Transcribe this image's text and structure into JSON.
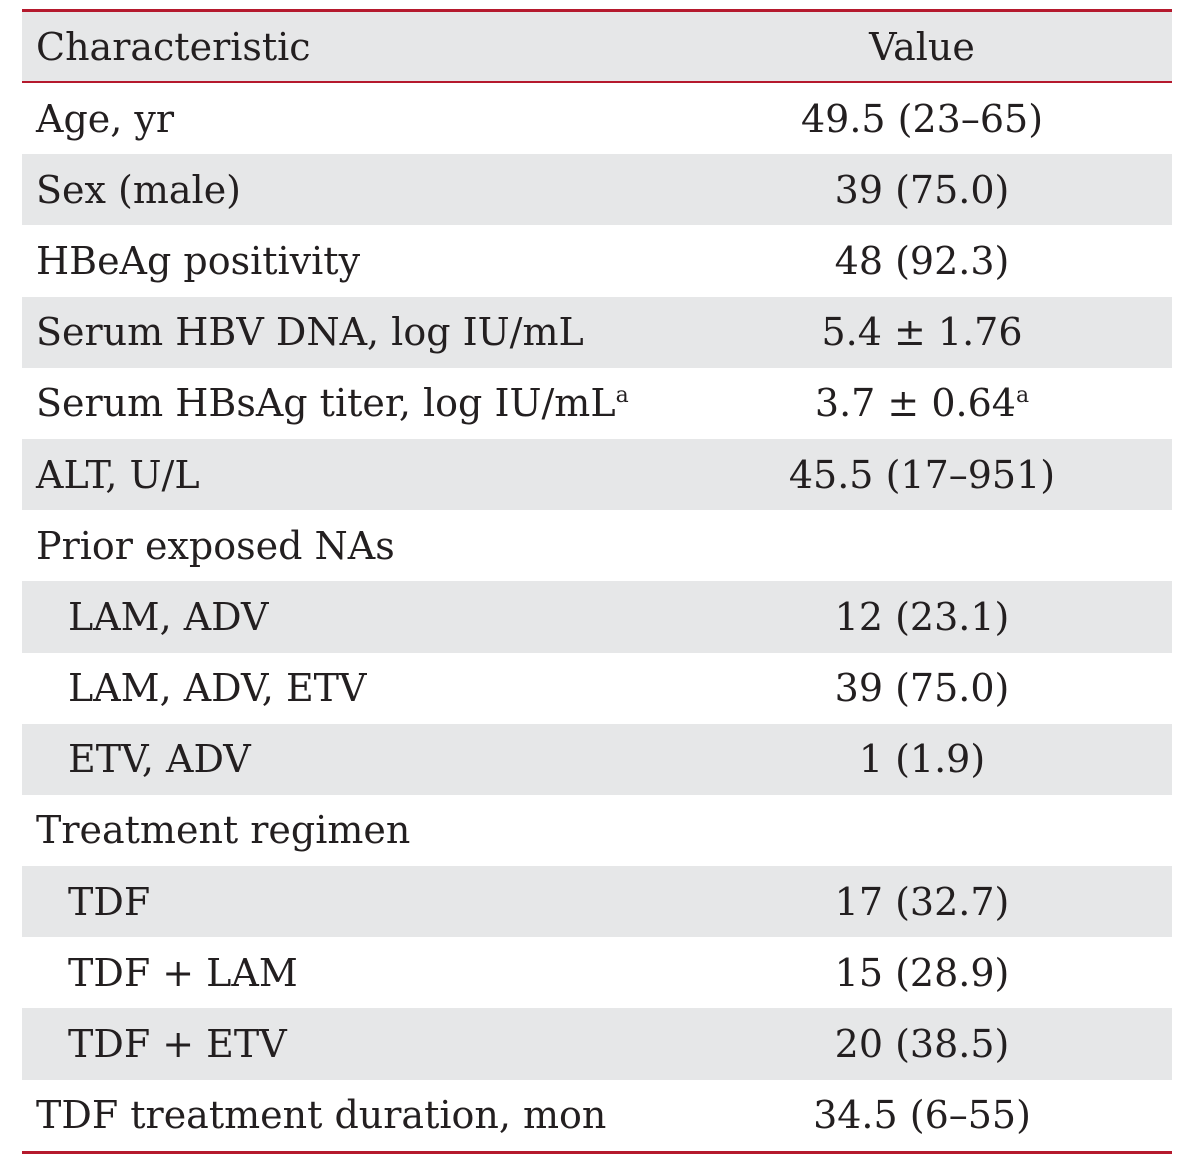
{
  "header": {
    "characteristic": "Characteristic",
    "value": "Value"
  },
  "rows": [
    {
      "label": "Age, yr",
      "value": "49.5 (23–65)",
      "shaded": false,
      "indent": false
    },
    {
      "label": "Sex (male)",
      "value": "39 (75.0)",
      "shaded": true,
      "indent": false
    },
    {
      "label": "HBeAg positivity",
      "value": "48 (92.3)",
      "shaded": false,
      "indent": false
    },
    {
      "label": "Serum HBV DNA, log IU/mL",
      "value": "5.4 ± 1.76",
      "shaded": true,
      "indent": false
    },
    {
      "label": "Serum HBsAg titer, log IU/mL",
      "label_sup": "a",
      "value": "3.7 ± 0.64",
      "value_sup": "a",
      "shaded": false,
      "indent": false
    },
    {
      "label": "ALT, U/L",
      "value": "45.5 (17–951)",
      "shaded": true,
      "indent": false
    },
    {
      "label": "Prior exposed NAs",
      "value": "",
      "shaded": false,
      "indent": false
    },
    {
      "label": "LAM, ADV",
      "value": "12 (23.1)",
      "shaded": true,
      "indent": true
    },
    {
      "label": "LAM, ADV, ETV",
      "value": "39 (75.0)",
      "shaded": false,
      "indent": true
    },
    {
      "label": "ETV, ADV",
      "value": "1 (1.9)",
      "shaded": true,
      "indent": true
    },
    {
      "label": "Treatment regimen",
      "value": "",
      "shaded": false,
      "indent": false
    },
    {
      "label": "TDF",
      "value": "17 (32.7)",
      "shaded": true,
      "indent": true
    },
    {
      "label": "TDF + LAM",
      "value": "15 (28.9)",
      "shaded": false,
      "indent": true
    },
    {
      "label": "TDF + ETV",
      "value": "20 (38.5)",
      "shaded": true,
      "indent": true
    },
    {
      "label": "TDF treatment duration, mon",
      "value": "34.5 (6–55)",
      "shaded": false,
      "indent": false
    }
  ],
  "colors": {
    "rule": "#b5192d",
    "shade": "#e6e7e8",
    "text": "#231f20"
  }
}
